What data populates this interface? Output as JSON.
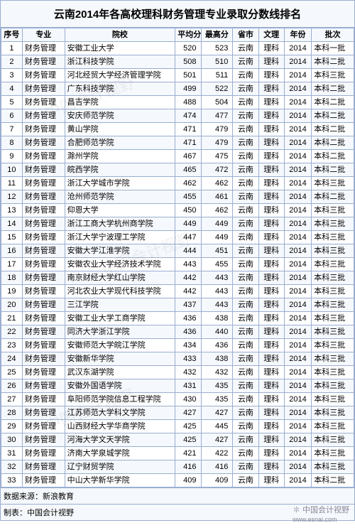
{
  "title": "云南2014年各高校理科财务管理专业录取分数线排名",
  "columns": [
    "序号",
    "专业",
    "院校",
    "平均分",
    "最高分",
    "省市",
    "文理",
    "年份",
    "批次"
  ],
  "rows": [
    [
      1,
      "财务管理",
      "安徽工业大学",
      520,
      523,
      "云南",
      "理科",
      2014,
      "本科一批"
    ],
    [
      2,
      "财务管理",
      "浙江科技学院",
      508,
      510,
      "云南",
      "理科",
      2014,
      "本科二批"
    ],
    [
      3,
      "财务管理",
      "河北经贸大学经济管理学院",
      501,
      511,
      "云南",
      "理科",
      2014,
      "本科三批"
    ],
    [
      4,
      "财务管理",
      "广东科技学院",
      499,
      522,
      "云南",
      "理科",
      2014,
      "本科二批"
    ],
    [
      5,
      "财务管理",
      "昌吉学院",
      488,
      504,
      "云南",
      "理科",
      2014,
      "本科二批"
    ],
    [
      6,
      "财务管理",
      "安庆师范学院",
      474,
      477,
      "云南",
      "理科",
      2014,
      "本科二批"
    ],
    [
      7,
      "财务管理",
      "黄山学院",
      471,
      479,
      "云南",
      "理科",
      2014,
      "本科二批"
    ],
    [
      8,
      "财务管理",
      "合肥师范学院",
      471,
      479,
      "云南",
      "理科",
      2014,
      "本科二批"
    ],
    [
      9,
      "财务管理",
      "滁州学院",
      467,
      475,
      "云南",
      "理科",
      2014,
      "本科二批"
    ],
    [
      10,
      "财务管理",
      "皖西学院",
      465,
      472,
      "云南",
      "理科",
      2014,
      "本科二批"
    ],
    [
      11,
      "财务管理",
      "浙江大学城市学院",
      462,
      462,
      "云南",
      "理科",
      2014,
      "本科三批"
    ],
    [
      12,
      "财务管理",
      "沧州师范学院",
      455,
      461,
      "云南",
      "理科",
      2014,
      "本科二批"
    ],
    [
      13,
      "财务管理",
      "仰恩大学",
      450,
      462,
      "云南",
      "理科",
      2014,
      "本科三批"
    ],
    [
      14,
      "财务管理",
      "浙江工商大学杭州商学院",
      449,
      449,
      "云南",
      "理科",
      2014,
      "本科三批"
    ],
    [
      15,
      "财务管理",
      "浙江大学宁波理工学院",
      447,
      449,
      "云南",
      "理科",
      2014,
      "本科三批"
    ],
    [
      16,
      "财务管理",
      "安徽大学江淮学院",
      444,
      451,
      "云南",
      "理科",
      2014,
      "本科三批"
    ],
    [
      17,
      "财务管理",
      "安徽农业大学经济技术学院",
      443,
      455,
      "云南",
      "理科",
      2014,
      "本科三批"
    ],
    [
      18,
      "财务管理",
      "南京财经大学红山学院",
      442,
      443,
      "云南",
      "理科",
      2014,
      "本科三批"
    ],
    [
      19,
      "财务管理",
      "河北农业大学现代科技学院",
      442,
      443,
      "云南",
      "理科",
      2014,
      "本科三批"
    ],
    [
      20,
      "财务管理",
      "三江学院",
      437,
      443,
      "云南",
      "理科",
      2014,
      "本科三批"
    ],
    [
      21,
      "财务管理",
      "安徽工业大学工商学院",
      436,
      438,
      "云南",
      "理科",
      2014,
      "本科三批"
    ],
    [
      22,
      "财务管理",
      "同济大学浙江学院",
      436,
      440,
      "云南",
      "理科",
      2014,
      "本科三批"
    ],
    [
      23,
      "财务管理",
      "安徽师范大学皖江学院",
      434,
      436,
      "云南",
      "理科",
      2014,
      "本科三批"
    ],
    [
      24,
      "财务管理",
      "安徽新华学院",
      433,
      438,
      "云南",
      "理科",
      2014,
      "本科三批"
    ],
    [
      25,
      "财务管理",
      "武汉东湖学院",
      432,
      432,
      "云南",
      "理科",
      2014,
      "本科三批"
    ],
    [
      26,
      "财务管理",
      "安徽外国语学院",
      431,
      435,
      "云南",
      "理科",
      2014,
      "本科三批"
    ],
    [
      27,
      "财务管理",
      "阜阳师范学院信息工程学院",
      430,
      435,
      "云南",
      "理科",
      2014,
      "本科三批"
    ],
    [
      28,
      "财务管理",
      "江苏师范大学科文学院",
      427,
      427,
      "云南",
      "理科",
      2014,
      "本科三批"
    ],
    [
      29,
      "财务管理",
      "山西财经大学华商学院",
      425,
      445,
      "云南",
      "理科",
      2014,
      "本科三批"
    ],
    [
      30,
      "财务管理",
      "河海大学文天学院",
      425,
      427,
      "云南",
      "理科",
      2014,
      "本科三批"
    ],
    [
      31,
      "财务管理",
      "济南大学泉城学院",
      421,
      422,
      "云南",
      "理科",
      2014,
      "本科三批"
    ],
    [
      32,
      "财务管理",
      "辽宁财贸学院",
      416,
      416,
      "云南",
      "理科",
      2014,
      "本科三批"
    ],
    [
      33,
      "财务管理",
      "中山大学新华学院",
      409,
      409,
      "云南",
      "理科",
      2014,
      "本科二批"
    ]
  ],
  "footer_source": "数据来源：新浪教育",
  "footer_made": "制表：中国会计视野",
  "credit": "中国会计视野",
  "credit_url": "www.esnai.com",
  "watermark": "中国会计视野",
  "colors": {
    "border": "#9aaed0",
    "band": "#f5f8fc",
    "text": "#000000"
  }
}
